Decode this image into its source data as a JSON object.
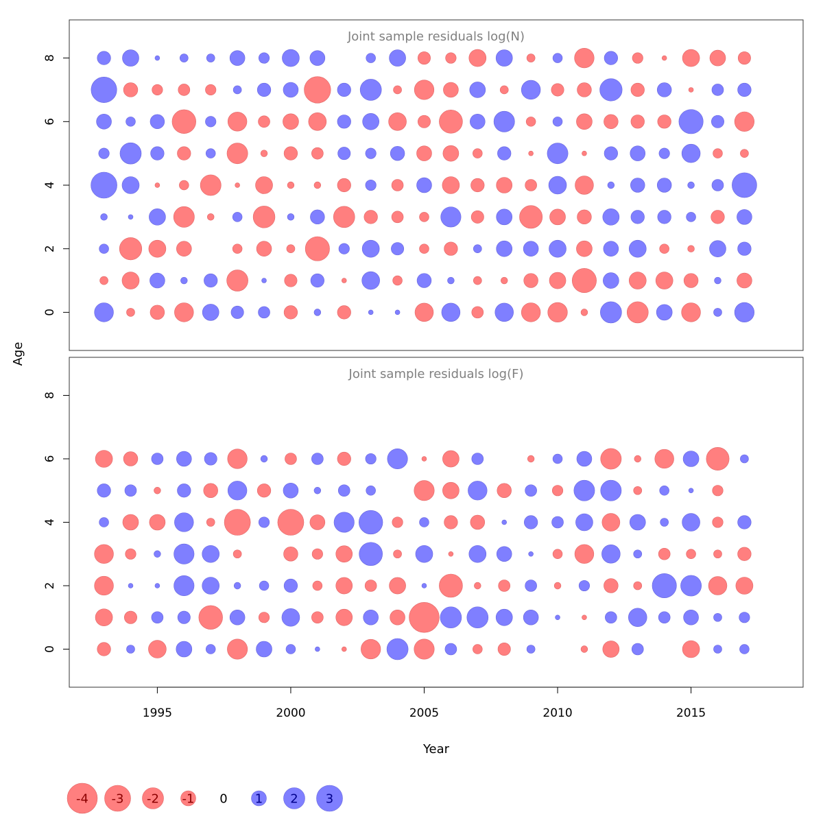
{
  "chart_data": {
    "type": "scatter",
    "subtype": "bubble",
    "xlabel": "Year",
    "ylabel": "Age",
    "x_ticks": [
      1995,
      2000,
      2005,
      2010,
      2015
    ],
    "y_ticks": [
      0,
      2,
      4,
      6,
      8
    ],
    "xlim": [
      1991.7,
      2019.2
    ],
    "ylim": [
      -1.2,
      9.2
    ],
    "colors": {
      "negative": "#ff7f7f",
      "positive": "#7f7fff",
      "negative_edge": "#e06666",
      "positive_edge": "#6666dd"
    },
    "years": [
      1993,
      1994,
      1995,
      1996,
      1997,
      1998,
      1999,
      2000,
      2001,
      2002,
      2003,
      2004,
      2005,
      2006,
      2007,
      2008,
      2009,
      2010,
      2011,
      2012,
      2013,
      2014,
      2015,
      2016,
      2017
    ],
    "panels": [
      {
        "title": "Joint sample residuals log(N)",
        "ages": [
          0,
          1,
          2,
          3,
          4,
          5,
          6,
          7,
          8
        ],
        "residuals": [
          [
            1.6,
            -0.3,
            -0.9,
            -1.6,
            1.2,
            0.7,
            0.6,
            -0.8,
            0.2,
            -0.8,
            0.1,
            0.1,
            -1.5,
            1.5,
            -0.6,
            1.5,
            -1.6,
            -1.7,
            -0.2,
            2.0,
            -2.0,
            1.1,
            -1.6,
            0.3,
            1.7
          ],
          [
            -0.3,
            -1.3,
            1.0,
            0.2,
            0.8,
            -2.0,
            0.1,
            -0.7,
            0.8,
            -0.1,
            1.4,
            -0.4,
            0.9,
            0.2,
            -0.3,
            -0.2,
            -0.9,
            -1.2,
            -2.6,
            1.1,
            -1.3,
            -1.3,
            -0.9,
            0.2,
            -1.0
          ],
          [
            0.4,
            -2.2,
            -1.3,
            -1.0,
            0.0,
            -0.4,
            -1.0,
            -0.3,
            -2.6,
            0.5,
            1.3,
            0.7,
            -0.4,
            -0.8,
            0.3,
            1.1,
            1.0,
            1.3,
            -1.1,
            1.0,
            1.3,
            -0.4,
            -0.2,
            1.2,
            0.8
          ],
          [
            0.2,
            0.1,
            1.2,
            -1.9,
            -0.2,
            0.4,
            -2.1,
            0.2,
            0.9,
            -2.0,
            -0.8,
            -0.6,
            -0.4,
            1.8,
            -0.7,
            1.1,
            -2.3,
            -1.1,
            -0.9,
            1.2,
            0.8,
            0.8,
            0.4,
            -0.8,
            1.0
          ],
          [
            3.0,
            1.3,
            -0.1,
            -0.4,
            -1.9,
            -0.1,
            -1.3,
            -0.2,
            -0.2,
            -0.8,
            0.5,
            -0.6,
            1.0,
            -1.3,
            -0.8,
            -1.1,
            -0.6,
            1.4,
            -1.5,
            0.2,
            0.9,
            0.9,
            0.2,
            0.6,
            2.7
          ],
          [
            0.5,
            2.0,
            0.8,
            -0.8,
            0.4,
            -1.9,
            -0.2,
            -0.8,
            -0.6,
            0.7,
            0.5,
            0.9,
            -1.0,
            -1.1,
            -0.4,
            0.8,
            -0.1,
            1.9,
            -0.1,
            0.8,
            1.0,
            0.5,
            1.5,
            -0.4,
            -0.3
          ],
          [
            1.0,
            0.4,
            0.9,
            -2.5,
            0.5,
            -1.6,
            -0.6,
            -1.1,
            -1.4,
            0.8,
            1.2,
            -1.4,
            -0.7,
            -2.4,
            1.0,
            1.9,
            -0.4,
            0.4,
            -1.1,
            -0.9,
            -0.8,
            -0.8,
            2.6,
            0.7,
            -1.7
          ],
          [
            2.9,
            -0.9,
            -0.5,
            -0.6,
            -0.5,
            0.3,
            0.8,
            1.0,
            -3.1,
            0.8,
            2.0,
            -0.3,
            -1.7,
            -1.0,
            1.1,
            -0.3,
            1.6,
            -0.7,
            -0.9,
            2.2,
            -0.8,
            0.9,
            -0.1,
            0.6,
            0.8
          ],
          [
            0.8,
            1.2,
            0.1,
            0.3,
            0.3,
            1.0,
            0.5,
            1.3,
            1.0,
            0.0,
            0.4,
            1.2,
            -0.7,
            -0.5,
            -1.3,
            1.2,
            -0.3,
            0.4,
            -1.7,
            0.8,
            -0.5,
            -0.1,
            -1.3,
            -1.1,
            -0.7
          ]
        ]
      },
      {
        "title": "Joint sample residuals log(F)",
        "ages": [
          0,
          1,
          2,
          3,
          4,
          5,
          6
        ],
        "residuals": [
          [
            -0.8,
            0.3,
            -1.4,
            1.1,
            0.4,
            -1.8,
            1.1,
            0.4,
            0.1,
            -0.1,
            -1.7,
            2.0,
            -1.8,
            0.6,
            -0.4,
            -0.7,
            0.3,
            0.0,
            -0.2,
            -1.2,
            0.6,
            0.0,
            -1.3,
            0.3,
            0.4
          ],
          [
            -1.3,
            -0.7,
            0.6,
            0.7,
            -2.5,
            1.0,
            -0.5,
            1.4,
            -0.6,
            -1.2,
            1.0,
            -1.0,
            -4.0,
            2.0,
            2.0,
            1.2,
            1.0,
            0.1,
            -0.1,
            0.6,
            1.5,
            0.6,
            1.0,
            0.3,
            0.5
          ],
          [
            -1.6,
            0.1,
            0.1,
            1.8,
            1.3,
            0.2,
            0.4,
            0.8,
            -0.4,
            -1.2,
            -0.6,
            -1.2,
            0.1,
            -2.4,
            -0.2,
            -0.6,
            0.6,
            -0.2,
            0.5,
            -0.9,
            -0.3,
            2.6,
            1.9,
            -1.5,
            -1.3
          ],
          [
            -1.6,
            -0.5,
            0.2,
            1.8,
            1.3,
            -0.3,
            0.0,
            -0.9,
            -0.5,
            -1.2,
            2.4,
            -0.3,
            1.3,
            -0.1,
            1.3,
            1.0,
            0.1,
            -0.4,
            -1.6,
            1.5,
            0.3,
            -0.6,
            -0.4,
            -0.3,
            -0.8
          ],
          [
            0.4,
            -1.1,
            -1.1,
            1.6,
            -0.3,
            -3.0,
            0.5,
            -3.0,
            -1.0,
            1.8,
            2.5,
            -0.5,
            0.4,
            -0.8,
            -0.9,
            0.1,
            0.8,
            0.6,
            1.3,
            -1.4,
            1.1,
            0.3,
            1.4,
            -0.5,
            0.8
          ],
          [
            0.8,
            0.6,
            -0.2,
            0.8,
            -0.9,
            1.6,
            -0.8,
            1.0,
            0.2,
            0.6,
            0.4,
            0.0,
            -1.8,
            -1.2,
            1.6,
            -0.9,
            0.6,
            -0.5,
            1.9,
            1.9,
            -0.3,
            0.4,
            0.1,
            -0.5,
            0.0
          ],
          [
            -1.3,
            -0.9,
            0.6,
            1.0,
            0.7,
            -1.7,
            0.2,
            -0.6,
            0.6,
            -0.8,
            0.5,
            1.8,
            -0.1,
            -1.2,
            0.6,
            0.0,
            -0.2,
            0.4,
            1.0,
            -1.9,
            -0.2,
            -1.6,
            1.1,
            -2.3,
            0.3
          ]
        ]
      }
    ],
    "legend": [
      {
        "value": -4,
        "label": "-4"
      },
      {
        "value": -3,
        "label": "-3"
      },
      {
        "value": -2,
        "label": "-2"
      },
      {
        "value": -1,
        "label": "-1"
      },
      {
        "value": 0,
        "label": "0"
      },
      {
        "value": 1,
        "label": "1"
      },
      {
        "value": 2,
        "label": "2"
      },
      {
        "value": 3,
        "label": "3"
      }
    ],
    "legend_position": "bottom-left"
  }
}
